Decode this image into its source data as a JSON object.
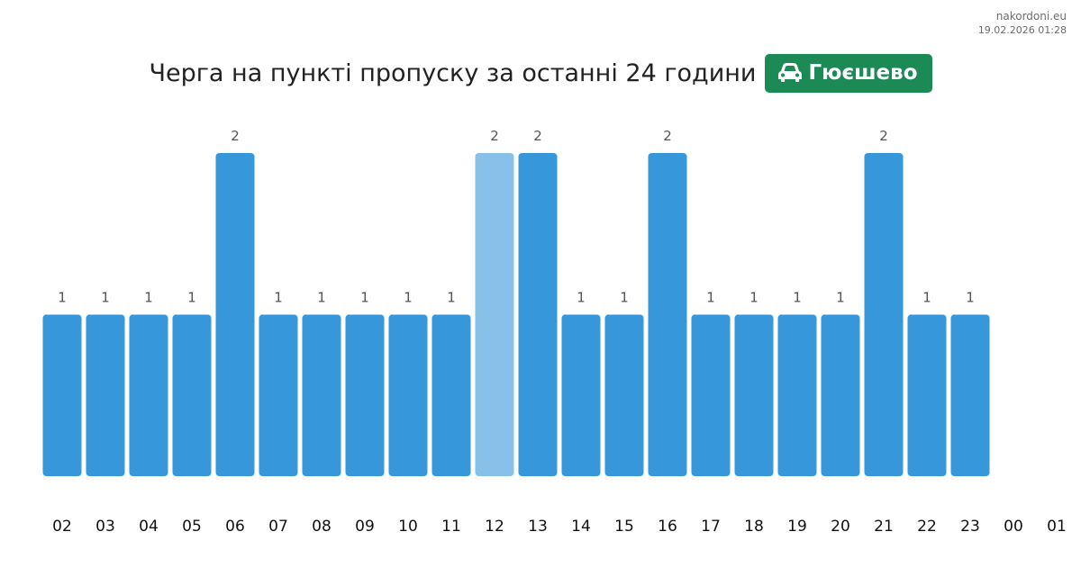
{
  "source": {
    "site": "nakordoni.eu",
    "timestamp": "19.02.2026 01:28"
  },
  "header": {
    "title": "Черга на пункті пропуску за останні 24 години",
    "checkpoint": "Гюєшево",
    "checkpoint_icon": "car-icon",
    "badge_color": "#1b8a55"
  },
  "chart_data": {
    "type": "bar",
    "title": "Черга на пункті пропуску за останні 24 години",
    "categories": [
      "02",
      "03",
      "04",
      "05",
      "06",
      "07",
      "08",
      "09",
      "10",
      "11",
      "12",
      "13",
      "14",
      "15",
      "16",
      "17",
      "18",
      "19",
      "20",
      "21",
      "22",
      "23",
      "00",
      "01"
    ],
    "values": [
      1,
      1,
      1,
      1,
      2,
      1,
      1,
      1,
      1,
      1,
      2,
      2,
      1,
      1,
      2,
      1,
      1,
      1,
      1,
      2,
      1,
      1,
      null,
      null
    ],
    "highlight_index": 10,
    "ylim": [
      0,
      2
    ],
    "grid": false,
    "data_labels": true,
    "colors": {
      "bar": "#3797db",
      "highlight": "#87c1ea",
      "label": "#555555",
      "tick": "#111111"
    }
  }
}
